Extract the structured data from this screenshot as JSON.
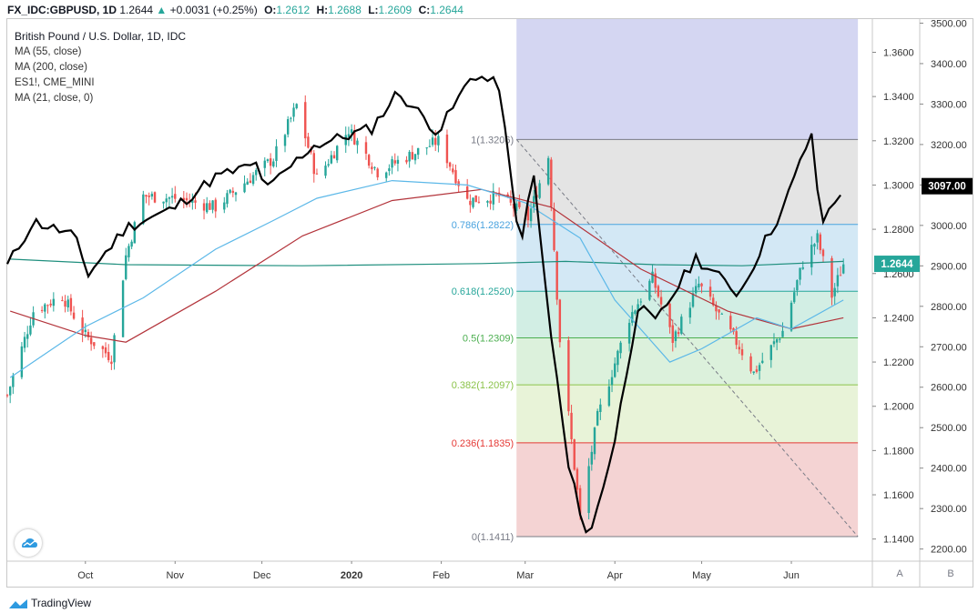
{
  "header": {
    "symbol": "FX_IDC:GBPUSD, 1D",
    "last": "1.2644",
    "arrow": "▲",
    "change": "+0.0031 (+0.25%)",
    "o_label": "O:",
    "o": "1.2612",
    "h_label": "H:",
    "h": "1.2688",
    "l_label": "L:",
    "l": "1.2609",
    "c_label": "C:",
    "c": "1.2644"
  },
  "legend": {
    "title": "British Pound / U.S. Dollar, 1D, IDC",
    "items": [
      "MA (55, close)",
      "MA (200, close)",
      "ES1!, CME_MINI",
      "MA (21, close, 0)"
    ]
  },
  "buttons": {
    "a": "A",
    "b": "B"
  },
  "brand": "TradingView",
  "colors": {
    "up": "#26a69a",
    "down": "#ef5350",
    "ma55": "#5cb8e8",
    "ma200": "#b3343b",
    "ma21": "#1f8f7e",
    "es": "#000000",
    "price_tag": "#26a69a",
    "es_tag": "#000000"
  },
  "chart_data": {
    "type": "candlestick",
    "title": "British Pound / U.S. Dollar, 1D, IDC",
    "x_labels": [
      "Oct",
      "Nov",
      "Dec",
      "2020",
      "Feb",
      "Mar",
      "Apr",
      "May",
      "Jun"
    ],
    "y_left": {
      "label": "GBPUSD",
      "ticks": [
        "1.3600",
        "1.3400",
        "1.3200",
        "1.3000",
        "1.2800",
        "1.2600",
        "1.2400",
        "1.2200",
        "1.2000",
        "1.1800",
        "1.1600",
        "1.1400"
      ],
      "range": [
        1.13,
        1.375
      ]
    },
    "y_right": {
      "label": "ES1!",
      "ticks": [
        "3500.00",
        "3400.00",
        "3300.00",
        "3200.00",
        "3100.00",
        "3000.00",
        "2900.00",
        "2800.00",
        "2700.00",
        "2600.00",
        "2500.00",
        "2400.00",
        "2300.00",
        "2200.00"
      ],
      "range": [
        2170,
        3510
      ]
    },
    "last_price": "1.2644",
    "es_last": "3097.00",
    "gbpusd_keypoints": [
      [
        "2019-09-04",
        1.205
      ],
      [
        "2019-09-13",
        1.243
      ],
      [
        "2019-09-23",
        1.25
      ],
      [
        "2019-10-01",
        1.232
      ],
      [
        "2019-10-10",
        1.222
      ],
      [
        "2019-10-15",
        1.268
      ],
      [
        "2019-10-21",
        1.295
      ],
      [
        "2019-11-01",
        1.294
      ],
      [
        "2019-11-15",
        1.29
      ],
      [
        "2019-12-05",
        1.312
      ],
      [
        "2019-12-13",
        1.336
      ],
      [
        "2019-12-20",
        1.303
      ],
      [
        "2019-12-31",
        1.325
      ],
      [
        "2020-01-10",
        1.306
      ],
      [
        "2020-01-31",
        1.32
      ],
      [
        "2020-02-10",
        1.293
      ],
      [
        "2020-02-21",
        1.295
      ],
      [
        "2020-03-02",
        1.285
      ],
      [
        "2020-03-09",
        1.313
      ],
      [
        "2020-03-13",
        1.23
      ],
      [
        "2020-03-20",
        1.15
      ],
      [
        "2020-03-26",
        1.195
      ],
      [
        "2020-04-06",
        1.24
      ],
      [
        "2020-04-14",
        1.258
      ],
      [
        "2020-04-21",
        1.23
      ],
      [
        "2020-04-30",
        1.255
      ],
      [
        "2020-05-14",
        1.227
      ],
      [
        "2020-05-19",
        1.215
      ],
      [
        "2020-05-29",
        1.234
      ],
      [
        "2020-06-05",
        1.265
      ],
      [
        "2020-06-10",
        1.276
      ],
      [
        "2020-06-15",
        1.25
      ],
      [
        "2020-06-19",
        1.2644
      ]
    ],
    "ma55": [
      [
        "2019-09-05",
        1.213
      ],
      [
        "2019-10-01",
        1.236
      ],
      [
        "2019-10-21",
        1.249
      ],
      [
        "2019-11-15",
        1.271
      ],
      [
        "2019-12-05",
        1.284
      ],
      [
        "2019-12-20",
        1.294
      ],
      [
        "2020-01-15",
        1.302
      ],
      [
        "2020-02-10",
        1.3
      ],
      [
        "2020-03-01",
        1.292
      ],
      [
        "2020-03-20",
        1.276
      ],
      [
        "2020-04-01",
        1.248
      ],
      [
        "2020-04-20",
        1.22
      ],
      [
        "2020-05-01",
        1.226
      ],
      [
        "2020-05-20",
        1.24
      ],
      [
        "2020-06-01",
        1.235
      ],
      [
        "2020-06-19",
        1.248
      ]
    ],
    "ma200": [
      [
        "2019-09-05",
        1.243
      ],
      [
        "2019-10-01",
        1.232
      ],
      [
        "2019-10-15",
        1.229
      ],
      [
        "2019-11-15",
        1.252
      ],
      [
        "2019-12-15",
        1.277
      ],
      [
        "2020-01-15",
        1.293
      ],
      [
        "2020-02-15",
        1.298
      ],
      [
        "2020-03-10",
        1.29
      ],
      [
        "2020-04-10",
        1.262
      ],
      [
        "2020-05-10",
        1.243
      ],
      [
        "2020-06-01",
        1.235
      ],
      [
        "2020-06-19",
        1.24
      ]
    ],
    "ma21": [
      [
        "2019-09-05",
        1.2665
      ],
      [
        "2019-10-15",
        1.264
      ],
      [
        "2019-12-15",
        1.2635
      ],
      [
        "2020-02-15",
        1.2645
      ],
      [
        "2020-03-15",
        1.2655
      ],
      [
        "2020-04-15",
        1.264
      ],
      [
        "2020-05-15",
        1.2635
      ],
      [
        "2020-06-19",
        1.2655
      ]
    ],
    "es1_keypoints": [
      [
        "2019-09-04",
        2900
      ],
      [
        "2019-09-13",
        3010
      ],
      [
        "2019-09-27",
        2975
      ],
      [
        "2019-10-02",
        2880
      ],
      [
        "2019-10-15",
        2995
      ],
      [
        "2019-10-31",
        3040
      ],
      [
        "2019-11-15",
        3120
      ],
      [
        "2019-11-29",
        3150
      ],
      [
        "2019-12-03",
        3090
      ],
      [
        "2019-12-18",
        3195
      ],
      [
        "2020-01-08",
        3240
      ],
      [
        "2020-01-17",
        3330
      ],
      [
        "2020-01-31",
        3230
      ],
      [
        "2020-02-12",
        3375
      ],
      [
        "2020-02-21",
        3345
      ],
      [
        "2020-02-28",
        2950
      ],
      [
        "2020-03-04",
        3120
      ],
      [
        "2020-03-09",
        2780
      ],
      [
        "2020-03-16",
        2400
      ],
      [
        "2020-03-23",
        2220
      ],
      [
        "2020-04-01",
        2470
      ],
      [
        "2020-04-09",
        2800
      ],
      [
        "2020-04-15",
        2760
      ],
      [
        "2020-04-29",
        2920
      ],
      [
        "2020-05-14",
        2830
      ],
      [
        "2020-05-22",
        2950
      ],
      [
        "2020-05-29",
        3040
      ],
      [
        "2020-06-08",
        3230
      ],
      [
        "2020-06-11",
        3000
      ],
      [
        "2020-06-19",
        3097
      ]
    ],
    "fibonacci": {
      "levels": [
        {
          "ratio": "1",
          "price": "1.3206",
          "label": "1(1.3206)",
          "color": "#787b86"
        },
        {
          "ratio": "0.786",
          "price": "1.2822",
          "label": "0.786(1.2822)",
          "color": "#4aa3df"
        },
        {
          "ratio": "0.618",
          "price": "1.2520",
          "label": "0.618(1.2520)",
          "color": "#26a69a"
        },
        {
          "ratio": "0.5",
          "price": "1.2309",
          "label": "0.5(1.2309)",
          "color": "#4caf50"
        },
        {
          "ratio": "0.382",
          "price": "1.2097",
          "label": "0.382(1.2097)",
          "color": "#8bc34a"
        },
        {
          "ratio": "0.236",
          "price": "1.1835",
          "label": "0.236(1.1835)",
          "color": "#e53935"
        },
        {
          "ratio": "0",
          "price": "1.1411",
          "label": "0(1.1411)",
          "color": "#787b86"
        }
      ],
      "zone_colors": [
        "#d4d6f2",
        "#e4e4e4",
        "#d3e8f5",
        "#d2eee4",
        "#dcf1dc",
        "#e8f3d8",
        "#f4d3d3"
      ],
      "start": "2020-02-27",
      "end": "2020-06-24"
    },
    "trendline": {
      "from": [
        "2020-02-27",
        1.3206
      ],
      "to": [
        "2020-06-24",
        1.1411
      ],
      "style": "dashed"
    }
  }
}
